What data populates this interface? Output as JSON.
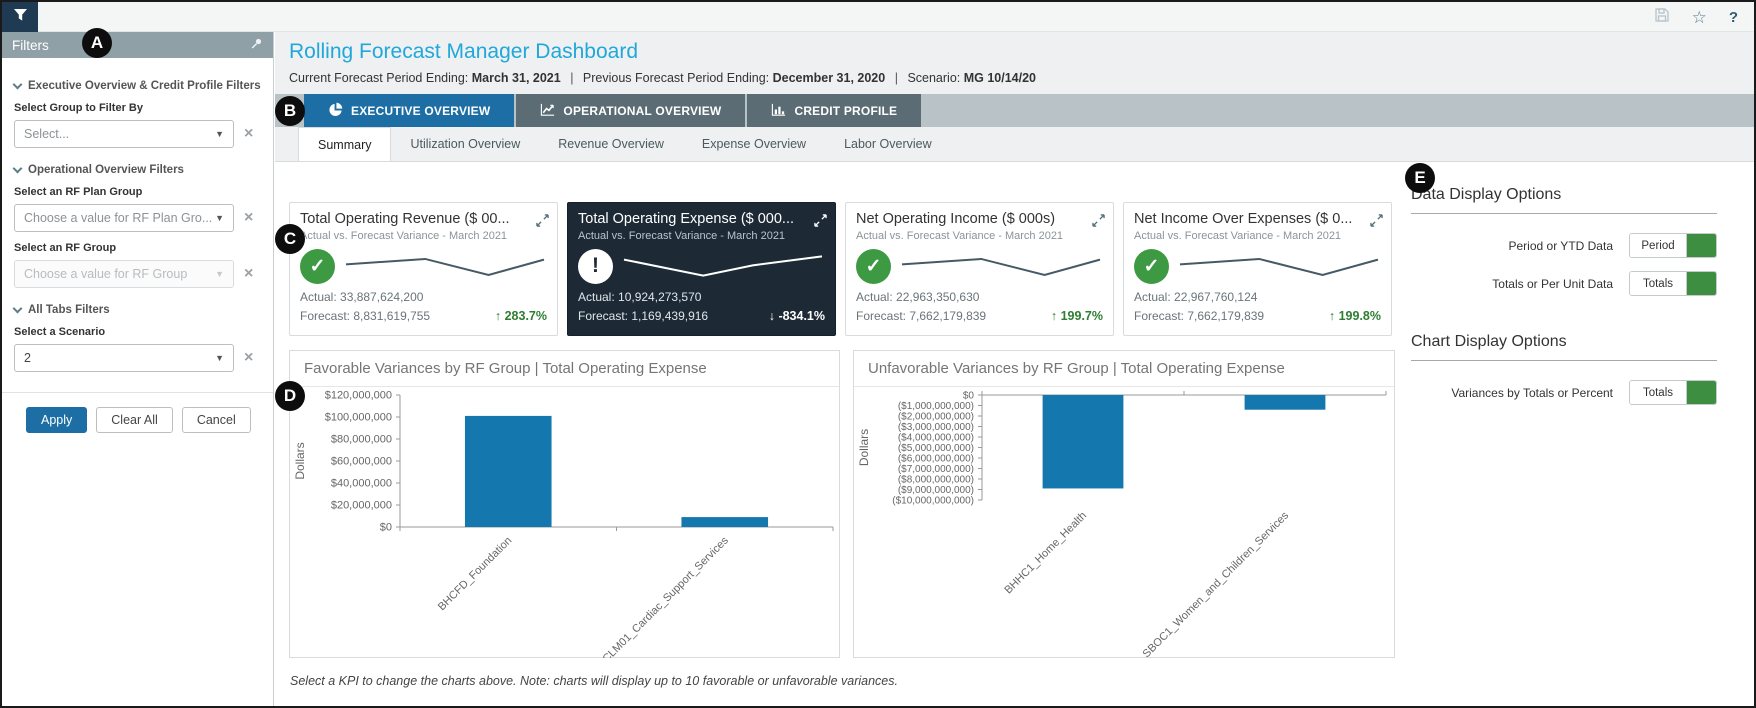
{
  "topbar": {
    "help_label": "?",
    "star_glyph": "☆"
  },
  "annotations": [
    {
      "label": "A"
    },
    {
      "label": "B"
    },
    {
      "label": "C"
    },
    {
      "label": "D"
    },
    {
      "label": "E"
    }
  ],
  "sidebar": {
    "title": "Filters",
    "sections": [
      {
        "title": "Executive Overview & Credit Profile Filters",
        "fields": [
          {
            "label": "Select Group to Filter By",
            "value": "Select...",
            "disabled": false,
            "has_value": false
          }
        ]
      },
      {
        "title": "Operational Overview Filters",
        "fields": [
          {
            "label": "Select an RF Plan Group",
            "value": "Choose a value for RF Plan Gro...",
            "disabled": false,
            "has_value": false
          },
          {
            "label": "Select an RF Group",
            "value": "Choose a value for RF Group",
            "disabled": true,
            "has_value": false
          }
        ]
      },
      {
        "title": "All Tabs Filters",
        "fields": [
          {
            "label": "Select a Scenario",
            "value": "2",
            "disabled": false,
            "has_value": true
          }
        ]
      }
    ],
    "apply_label": "Apply",
    "clear_label": "Clear All",
    "cancel_label": "Cancel",
    "caret_glyph": "▼",
    "clear_glyph": "×"
  },
  "header": {
    "title": "Rolling Forecast Manager Dashboard",
    "sep": "|",
    "meta": [
      {
        "label": "Current Forecast Period Ending:",
        "value": "March 31, 2021"
      },
      {
        "label": "Previous Forecast Period Ending:",
        "value": "December 31, 2020"
      },
      {
        "label": "Scenario:",
        "value": "MG 10/14/20"
      }
    ]
  },
  "main_tabs": [
    {
      "label": "EXECUTIVE OVERVIEW",
      "icon": "pie-chart-icon",
      "active": true
    },
    {
      "label": "OPERATIONAL OVERVIEW",
      "icon": "line-chart-icon",
      "active": false
    },
    {
      "label": "CREDIT PROFILE",
      "icon": "bar-chart-icon",
      "active": false
    }
  ],
  "sub_tabs": [
    {
      "label": "Summary",
      "active": true
    },
    {
      "label": "Utilization Overview",
      "active": false
    },
    {
      "label": "Revenue Overview",
      "active": false
    },
    {
      "label": "Expense Overview",
      "active": false
    },
    {
      "label": "Labor Overview",
      "active": false
    }
  ],
  "kpi_cards": [
    {
      "title": "Total Operating Revenue ($ 00...",
      "subtitle": "Actual vs. Forecast Variance - March 2021",
      "status": "good",
      "selected": false,
      "actual_label": "Actual:",
      "actual_value": "33,887,624,200",
      "forecast_label": "Forecast:",
      "forecast_value": "8,831,619,755",
      "variance": "283.7%",
      "direction": "up",
      "sparkline": [
        [
          0,
          45
        ],
        [
          40,
          28
        ],
        [
          72,
          78
        ],
        [
          100,
          30
        ]
      ]
    },
    {
      "title": "Total Operating Expense ($ 000...",
      "subtitle": "Actual vs. Forecast Variance - March 2021",
      "status": "alert",
      "selected": true,
      "actual_label": "Actual:",
      "actual_value": "10,924,273,570",
      "forecast_label": "Forecast:",
      "forecast_value": "1,169,439,916",
      "variance": "-834.1%",
      "direction": "down",
      "sparkline": [
        [
          0,
          30
        ],
        [
          40,
          80
        ],
        [
          65,
          48
        ],
        [
          100,
          20
        ]
      ]
    },
    {
      "title": "Net Operating Income ($ 000s)",
      "subtitle": "Actual vs. Forecast Variance - March 2021",
      "status": "good",
      "selected": false,
      "actual_label": "Actual:",
      "actual_value": "22,963,350,630",
      "forecast_label": "Forecast:",
      "forecast_value": "7,662,179,839",
      "variance": "199.7%",
      "direction": "up",
      "sparkline": [
        [
          0,
          45
        ],
        [
          40,
          28
        ],
        [
          72,
          78
        ],
        [
          100,
          30
        ]
      ]
    },
    {
      "title": "Net Income Over Expenses ($ 0...",
      "subtitle": "Actual vs. Forecast Variance - March 2021",
      "status": "good",
      "selected": false,
      "actual_label": "Actual:",
      "actual_value": "22,967,760,124",
      "forecast_label": "Forecast:",
      "forecast_value": "7,662,179,839",
      "variance": "199.8%",
      "direction": "up",
      "sparkline": [
        [
          0,
          45
        ],
        [
          40,
          28
        ],
        [
          72,
          78
        ],
        [
          100,
          30
        ]
      ]
    }
  ],
  "chart_data": [
    {
      "type": "bar",
      "title": "Favorable Variances by RF Group | Total Operating Expense",
      "ylabel": "Dollars",
      "categories": [
        "BHCFD_Foundation",
        "CLM01_Cardiac_Support_Services"
      ],
      "values": [
        101000000,
        9000000
      ],
      "ylim": [
        0,
        120000000
      ],
      "bar_color": "#1477ae",
      "ticks": [
        {
          "value": 120000000,
          "label": "$120,000,000"
        },
        {
          "value": 100000000,
          "label": "$100,000,000"
        },
        {
          "value": 80000000,
          "label": "$80,000,000"
        },
        {
          "value": 60000000,
          "label": "$60,000,000"
        },
        {
          "value": 40000000,
          "label": "$40,000,000"
        },
        {
          "value": 20000000,
          "label": "$20,000,000"
        },
        {
          "value": 0,
          "label": "$0"
        }
      ]
    },
    {
      "type": "bar",
      "title": "Unfavorable Variances by RF Group | Total Operating Expense",
      "ylabel": "Dollars",
      "categories": [
        "BHHC1_Home_Health",
        "SBOC1_Women_and_Children_Services"
      ],
      "values": [
        -8900000000,
        -1400000000
      ],
      "ylim": [
        -10000000000,
        0
      ],
      "bar_color": "#1477ae",
      "ticks": [
        {
          "value": 0,
          "label": "$0"
        },
        {
          "value": -1000000000,
          "label": "($1,000,000,000)"
        },
        {
          "value": -2000000000,
          "label": "($2,000,000,000)"
        },
        {
          "value": -3000000000,
          "label": "($3,000,000,000)"
        },
        {
          "value": -4000000000,
          "label": "($4,000,000,000)"
        },
        {
          "value": -5000000000,
          "label": "($5,000,000,000)"
        },
        {
          "value": -6000000000,
          "label": "($6,000,000,000)"
        },
        {
          "value": -7000000000,
          "label": "($7,000,000,000)"
        },
        {
          "value": -8000000000,
          "label": "($8,000,000,000)"
        },
        {
          "value": -9000000000,
          "label": "($9,000,000,000)"
        },
        {
          "value": -10000000000,
          "label": "($10,000,000,000)"
        }
      ]
    }
  ],
  "options_panel": {
    "data_heading": "Data Display Options",
    "chart_heading": "Chart Display Options",
    "rows": [
      {
        "label": "Period or YTD Data",
        "value": "Period"
      },
      {
        "label": "Totals or Per Unit Data",
        "value": "Totals"
      },
      {
        "label": "Variances by Totals or Percent",
        "value": "Totals"
      }
    ]
  },
  "footnote": "Select a KPI to change the charts above. Note: charts will display up to 10 favorable or unfavorable variances."
}
